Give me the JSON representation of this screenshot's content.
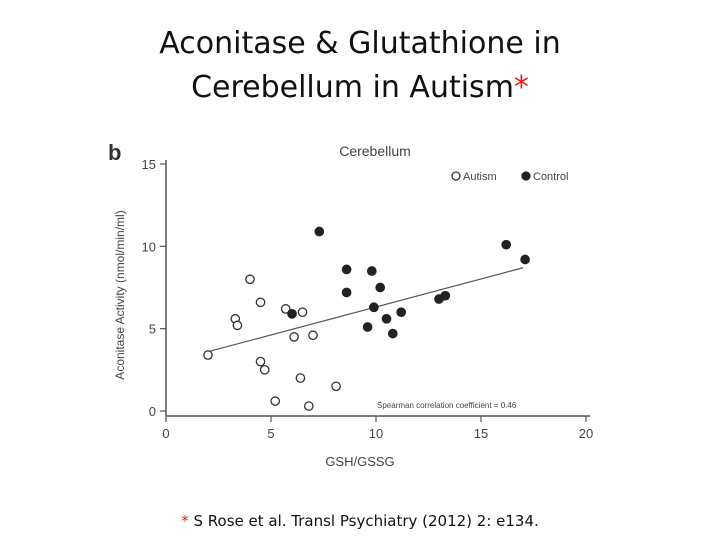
{
  "slide": {
    "title_line1": "Aconitase & Glutathione in",
    "title_line2": "Cerebellum in Autism",
    "title_mark": "*",
    "footnote_mark": "*",
    "footnote_text": " S Rose et al. Transl Psychiatry (2012) 2: e134."
  },
  "chart_data": {
    "type": "scatter",
    "panel_label": "b",
    "title": "Cerebellum",
    "xlabel": "GSH/GSSG",
    "ylabel": "Aconitase Activity (nmol/min/ml)",
    "xlim": [
      0,
      20
    ],
    "ylim": [
      0,
      15
    ],
    "xticks": [
      0,
      5,
      10,
      15,
      20
    ],
    "yticks": [
      0,
      5,
      10,
      15
    ],
    "grid": false,
    "legend_position": "top-right",
    "annotation": "Spearman correlation coefficient = 0.46",
    "series": [
      {
        "name": "Autism",
        "marker": "open-circle",
        "color": "#333333",
        "points": [
          [
            2.0,
            3.4
          ],
          [
            3.3,
            5.6
          ],
          [
            3.4,
            5.2
          ],
          [
            4.0,
            8.0
          ],
          [
            4.5,
            6.6
          ],
          [
            4.5,
            3.0
          ],
          [
            4.7,
            2.5
          ],
          [
            5.2,
            0.6
          ],
          [
            5.7,
            6.2
          ],
          [
            6.1,
            4.5
          ],
          [
            6.4,
            2.0
          ],
          [
            6.5,
            6.0
          ],
          [
            6.8,
            0.3
          ],
          [
            7.0,
            4.6
          ],
          [
            8.1,
            1.5
          ]
        ]
      },
      {
        "name": "Control",
        "marker": "filled-circle",
        "color": "#222222",
        "points": [
          [
            6.0,
            5.9
          ],
          [
            7.3,
            10.9
          ],
          [
            8.6,
            8.6
          ],
          [
            8.6,
            7.2
          ],
          [
            9.6,
            5.1
          ],
          [
            9.8,
            8.5
          ],
          [
            9.9,
            6.3
          ],
          [
            10.2,
            7.5
          ],
          [
            10.5,
            5.6
          ],
          [
            10.8,
            4.7
          ],
          [
            11.2,
            6.0
          ],
          [
            13.0,
            6.8
          ],
          [
            13.3,
            7.0
          ],
          [
            16.2,
            10.1
          ],
          [
            17.1,
            9.2
          ]
        ]
      }
    ],
    "trendline": {
      "x": [
        2.0,
        17.0
      ],
      "y": [
        3.6,
        8.7
      ]
    }
  }
}
